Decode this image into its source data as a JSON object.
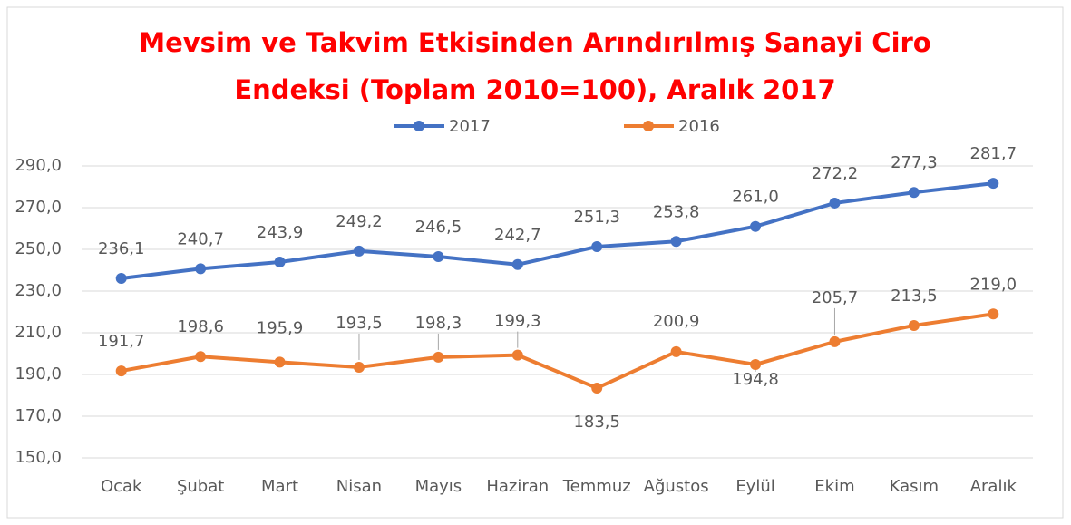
{
  "chart_data": {
    "type": "line",
    "title": [
      "Mevsim ve Takvim Etkisinden Arındırılmış Sanayi Ciro",
      "Endeksi (Toplam 2010=100), Aralık 2017"
    ],
    "categories": [
      "Ocak",
      "Şubat",
      "Mart",
      "Nisan",
      "Mayıs",
      "Haziran",
      "Temmuz",
      "Ağustos",
      "Eylül",
      "Ekim",
      "Kasım",
      "Aralık"
    ],
    "series": [
      {
        "name": "2017",
        "color": "#4472c4",
        "values": [
          236.1,
          240.7,
          243.9,
          249.2,
          246.5,
          242.7,
          251.3,
          253.8,
          261.0,
          272.2,
          277.3,
          281.7
        ],
        "value_labels": [
          "236,1",
          "240,7",
          "243,9",
          "249,2",
          "246,5",
          "242,7",
          "251,3",
          "253,8",
          "261,0",
          "272,2",
          "277,3",
          "281,7"
        ]
      },
      {
        "name": "2016",
        "color": "#ed7d31",
        "values": [
          191.7,
          198.6,
          195.9,
          193.5,
          198.3,
          199.3,
          183.5,
          200.9,
          194.8,
          205.7,
          213.5,
          219.0
        ],
        "value_labels": [
          "191,7",
          "198,6",
          "195,9",
          "193,5",
          "198,3",
          "199,3",
          "183,5",
          "200,9",
          "194,8",
          "205,7",
          "213,5",
          "219,0"
        ]
      }
    ],
    "ylim": [
      150,
      290
    ],
    "yticks": [
      {
        "value": 150,
        "label": "150,0"
      },
      {
        "value": 170,
        "label": "170,0"
      },
      {
        "value": 190,
        "label": "190,0"
      },
      {
        "value": 210,
        "label": "210,0"
      },
      {
        "value": 230,
        "label": "230,0"
      },
      {
        "value": 250,
        "label": "250,0"
      },
      {
        "value": 270,
        "label": "270,0"
      },
      {
        "value": 290,
        "label": "290,0"
      }
    ],
    "grid": true,
    "legend": "top"
  }
}
